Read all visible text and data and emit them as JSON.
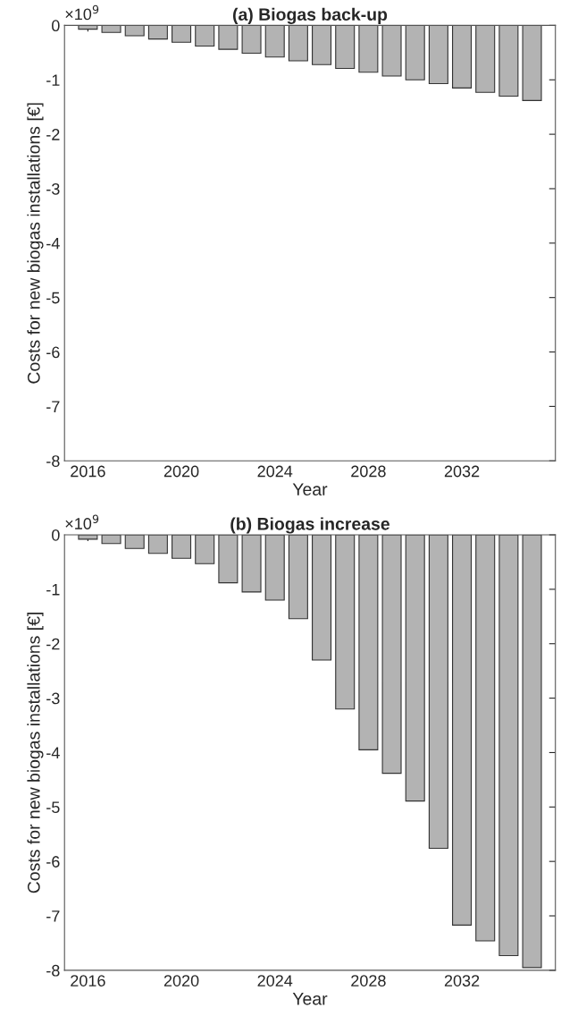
{
  "chart_data": [
    {
      "type": "bar",
      "title": "(a) Biogas back-up",
      "xlabel": "Year",
      "ylabel": "Costs for new biogas installations [€]",
      "annotations": [
        "×10$^{9}$"
      ],
      "x": [
        2016,
        2017,
        2018,
        2019,
        2020,
        2021,
        2022,
        2023,
        2024,
        2025,
        2026,
        2027,
        2028,
        2029,
        2030,
        2031,
        2032,
        2033,
        2034,
        2035
      ],
      "values": [
        -0.07,
        -0.13,
        -0.19,
        -0.25,
        -0.31,
        -0.38,
        -0.44,
        -0.51,
        -0.58,
        -0.65,
        -0.72,
        -0.79,
        -0.86,
        -0.93,
        -1.0,
        -1.07,
        -1.15,
        -1.23,
        -1.3,
        -1.38
      ],
      "color": "#b3b3b3",
      "xlim": [
        2015,
        2036
      ],
      "xticks": [
        2016,
        2020,
        2024,
        2028,
        2032
      ],
      "ylim": [
        -8,
        0
      ],
      "yticks": [
        -8,
        -7,
        -6,
        -5,
        -4,
        -3,
        -2,
        -1,
        0
      ],
      "grid": false
    },
    {
      "type": "bar",
      "title": "(b) Biogas increase",
      "xlabel": "Year",
      "ylabel": "Costs for new biogas installations [€]",
      "annotations": [
        "×10$^{9}$"
      ],
      "x": [
        2016,
        2017,
        2018,
        2019,
        2020,
        2021,
        2022,
        2023,
        2024,
        2025,
        2026,
        2027,
        2028,
        2029,
        2030,
        2031,
        2032,
        2033,
        2034,
        2035
      ],
      "values": [
        -0.08,
        -0.16,
        -0.25,
        -0.34,
        -0.43,
        -0.53,
        -0.88,
        -1.05,
        -1.2,
        -1.54,
        -2.3,
        -3.2,
        -3.95,
        -4.38,
        -4.89,
        -5.76,
        -7.17,
        -7.46,
        -7.73,
        -7.95
      ],
      "color": "#b3b3b3",
      "xlim": [
        2015,
        2036
      ],
      "xticks": [
        2016,
        2020,
        2024,
        2028,
        2032
      ],
      "ylim": [
        -8,
        0
      ],
      "yticks": [
        -8,
        -7,
        -6,
        -5,
        -4,
        -3,
        -2,
        -1,
        0
      ],
      "grid": false
    }
  ]
}
